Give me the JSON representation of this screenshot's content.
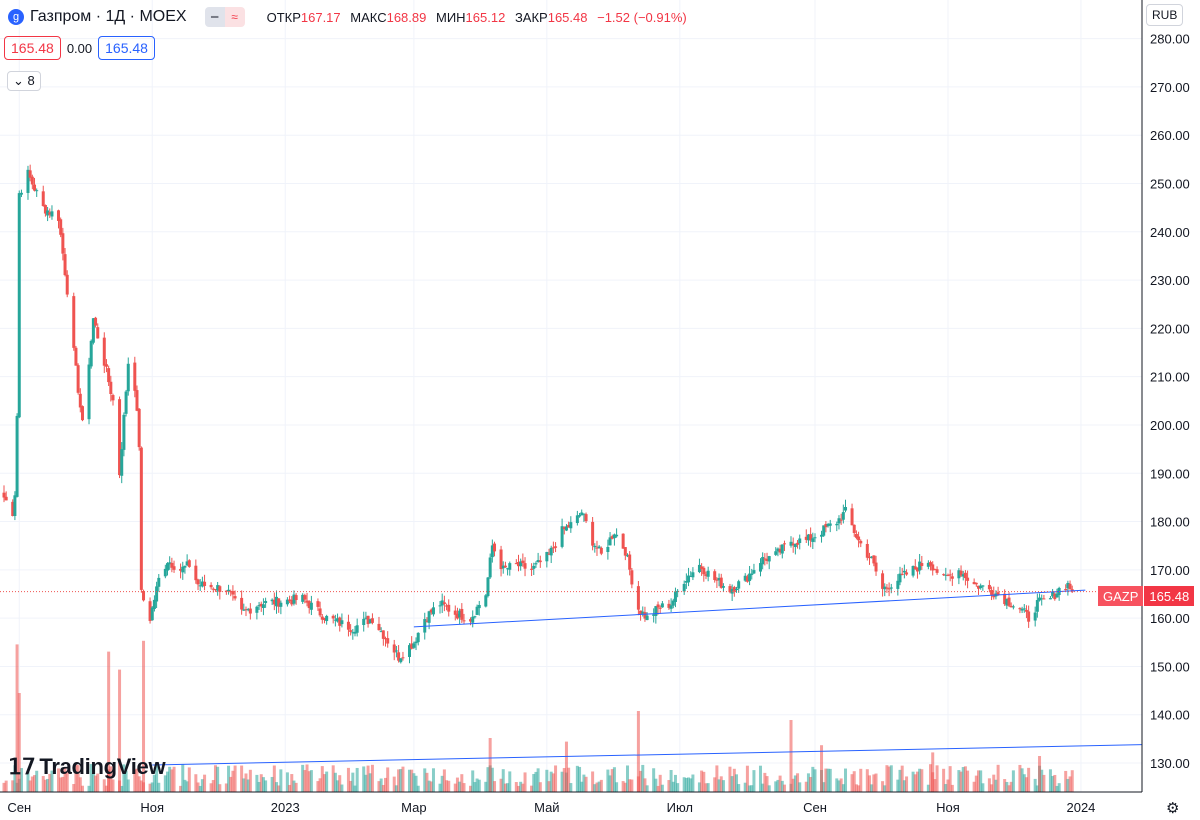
{
  "header": {
    "symbol_icon": "gazprom-flame-icon",
    "title": "Газпром · 1Д · MOEX",
    "ohlc": [
      {
        "k": "ОТКР",
        "v": "167.17"
      },
      {
        "k": "МАКС",
        "v": "168.89"
      },
      {
        "k": "МИН",
        "v": "165.12"
      },
      {
        "k": "ЗАКР",
        "v": "165.48"
      }
    ],
    "change": "−1.52 (−0.91%)",
    "bid": "165.48",
    "spread": "0.00",
    "ask": "165.48",
    "collapse_label": "8",
    "eye_icon": "eye-hidden-icon",
    "wave_icon": "approx-icon"
  },
  "currency": "RUB",
  "price_label": {
    "ticker": "GAZP",
    "value": "165.48"
  },
  "logo_text": "TradingView",
  "colors": {
    "up": "#26a69a",
    "down": "#ef5350",
    "trend": "#2962ff",
    "grid": "#f0f3fa"
  },
  "chart_data": {
    "type": "candlestick",
    "y_axis": {
      "min": 124,
      "max": 288,
      "ticks": [
        130,
        140,
        150,
        160,
        170,
        180,
        190,
        200,
        210,
        220,
        230,
        240,
        250,
        260,
        270,
        280
      ],
      "labels": [
        "130.00",
        "140.00",
        "150.00",
        "160.00",
        "170.00",
        "180.00",
        "190.00",
        "200.00",
        "210.00",
        "220.00",
        "230.00",
        "240.00",
        "250.00",
        "260.00",
        "270.00",
        "280.00"
      ]
    },
    "x_axis": {
      "labels": [
        "Сен",
        "Ноя",
        "2023",
        "Мар",
        "Май",
        "Июл",
        "Сен",
        "Ноя",
        "2024"
      ],
      "dates": [
        "2022-09-01",
        "2022-11-01",
        "2023-01-01",
        "2023-03-01",
        "2023-05-01",
        "2023-07-01",
        "2023-09-01",
        "2023-11-01",
        "2024-01-01"
      ]
    },
    "last_price": 165.48,
    "price_path": [
      [
        "2022-08-25",
        185
      ],
      [
        "2022-08-29",
        182
      ],
      [
        "2022-08-30",
        186
      ],
      [
        "2022-08-31",
        202
      ],
      [
        "2022-09-01",
        248
      ],
      [
        "2022-09-05",
        252
      ],
      [
        "2022-09-12",
        245
      ],
      [
        "2022-09-19",
        243
      ],
      [
        "2022-09-23",
        228
      ],
      [
        "2022-09-26",
        215
      ],
      [
        "2022-09-30",
        200
      ],
      [
        "2022-10-05",
        222
      ],
      [
        "2022-10-10",
        213
      ],
      [
        "2022-10-14",
        205
      ],
      [
        "2022-10-17",
        190
      ],
      [
        "2022-10-21",
        213
      ],
      [
        "2022-10-24",
        208
      ],
      [
        "2022-10-26",
        196
      ],
      [
        "2022-10-27",
        165
      ],
      [
        "2022-10-31",
        160
      ],
      [
        "2022-11-04",
        168
      ],
      [
        "2022-11-08",
        172
      ],
      [
        "2022-11-14",
        170
      ],
      [
        "2022-11-18",
        171
      ],
      [
        "2022-11-22",
        167
      ],
      [
        "2022-12-05",
        166
      ],
      [
        "2022-12-12",
        161
      ],
      [
        "2022-12-20",
        163
      ],
      [
        "2023-01-09",
        164
      ],
      [
        "2023-01-20",
        160
      ],
      [
        "2023-02-01",
        158
      ],
      [
        "2023-02-10",
        160
      ],
      [
        "2023-02-22",
        152
      ],
      [
        "2023-03-01",
        155
      ],
      [
        "2023-03-06",
        160
      ],
      [
        "2023-03-13",
        163
      ],
      [
        "2023-03-20",
        161
      ],
      [
        "2023-03-27",
        160
      ],
      [
        "2023-04-03",
        165
      ],
      [
        "2023-04-06",
        175
      ],
      [
        "2023-04-11",
        170
      ],
      [
        "2023-04-17",
        171
      ],
      [
        "2023-04-24",
        170
      ],
      [
        "2023-05-02",
        173
      ],
      [
        "2023-05-08",
        178
      ],
      [
        "2023-05-14",
        180
      ],
      [
        "2023-05-17",
        182
      ],
      [
        "2023-05-22",
        176
      ],
      [
        "2023-05-26",
        173
      ],
      [
        "2023-06-01",
        178
      ],
      [
        "2023-06-06",
        174
      ],
      [
        "2023-06-09",
        168
      ],
      [
        "2023-06-12",
        162
      ],
      [
        "2023-06-16",
        160
      ],
      [
        "2023-06-21",
        162
      ],
      [
        "2023-06-27",
        163
      ],
      [
        "2023-07-03",
        168
      ],
      [
        "2023-07-10",
        171
      ],
      [
        "2023-07-17",
        168
      ],
      [
        "2023-07-24",
        166
      ],
      [
        "2023-07-31",
        168
      ],
      [
        "2023-08-07",
        172
      ],
      [
        "2023-08-14",
        173
      ],
      [
        "2023-08-21",
        176
      ],
      [
        "2023-08-28",
        176
      ],
      [
        "2023-09-04",
        178
      ],
      [
        "2023-09-11",
        180
      ],
      [
        "2023-09-15",
        182
      ],
      [
        "2023-09-21",
        176
      ],
      [
        "2023-09-27",
        172
      ],
      [
        "2023-10-02",
        166
      ],
      [
        "2023-10-09",
        168
      ],
      [
        "2023-10-16",
        170
      ],
      [
        "2023-10-23",
        172
      ],
      [
        "2023-10-30",
        168
      ],
      [
        "2023-11-06",
        170
      ],
      [
        "2023-11-13",
        167
      ],
      [
        "2023-11-20",
        166
      ],
      [
        "2023-11-27",
        164
      ],
      [
        "2023-12-04",
        162
      ],
      [
        "2023-12-08",
        160
      ],
      [
        "2023-12-12",
        163
      ],
      [
        "2023-12-18",
        164
      ],
      [
        "2023-12-22",
        166
      ],
      [
        "2023-12-26",
        167
      ],
      [
        "2023-12-28",
        165.48
      ]
    ],
    "volume_spikes": [
      [
        "2022-08-31",
        0.82
      ],
      [
        "2022-09-01",
        0.55
      ],
      [
        "2022-10-12",
        0.78
      ],
      [
        "2022-10-17",
        0.68
      ],
      [
        "2022-10-28",
        0.84
      ],
      [
        "2023-06-12",
        0.45
      ],
      [
        "2023-08-21",
        0.4
      ],
      [
        "2023-04-05",
        0.3
      ],
      [
        "2023-09-04",
        0.26
      ],
      [
        "2023-05-10",
        0.28
      ],
      [
        "2023-10-25",
        0.22
      ],
      [
        "2023-12-13",
        0.2
      ]
    ],
    "trendlines": [
      {
        "from": [
          "2023-03-01",
          158.2
        ],
        "to": [
          "2024-01-03",
          165.8
        ]
      },
      {
        "from": [
          "2022-11-01",
          129.6
        ],
        "to": [
          "2024-01-29",
          133.8
        ]
      }
    ]
  }
}
